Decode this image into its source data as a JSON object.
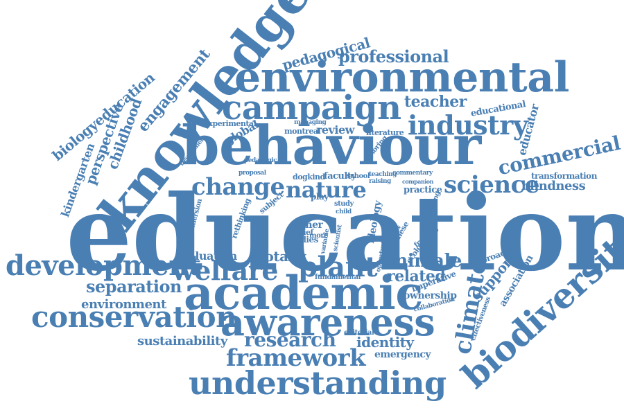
{
  "accent_color": "#4a7fb3",
  "words": [
    {
      "text": "education"
    },
    {
      "text": "behaviour"
    },
    {
      "text": "environmental"
    },
    {
      "text": "knowledge"
    },
    {
      "text": "academic"
    },
    {
      "text": "awareness"
    },
    {
      "text": "campaign"
    },
    {
      "text": "biodiversity"
    },
    {
      "text": "development"
    },
    {
      "text": "conservation"
    },
    {
      "text": "understanding"
    },
    {
      "text": "welfare"
    },
    {
      "text": "plant"
    },
    {
      "text": "industry"
    },
    {
      "text": "nature"
    },
    {
      "text": "change"
    },
    {
      "text": "science"
    },
    {
      "text": "framework"
    },
    {
      "text": "research"
    },
    {
      "text": "commercial"
    },
    {
      "text": "climate"
    },
    {
      "text": "professional"
    },
    {
      "text": "teacher"
    },
    {
      "text": "pedagogical"
    },
    {
      "text": "engagement"
    },
    {
      "text": "biologyeducation"
    },
    {
      "text": "perspective"
    },
    {
      "text": "childhood"
    },
    {
      "text": "kindergarten"
    },
    {
      "text": "separation"
    },
    {
      "text": "environment"
    },
    {
      "text": "sustainability"
    },
    {
      "text": "animale"
    },
    {
      "text": "related"
    },
    {
      "text": "support"
    },
    {
      "text": "identity"
    },
    {
      "text": "emergency"
    },
    {
      "text": "botany"
    },
    {
      "text": "evaluation"
    },
    {
      "text": "ownership"
    },
    {
      "text": "association"
    },
    {
      "text": "blindness"
    },
    {
      "text": "transformation"
    },
    {
      "text": "educator"
    },
    {
      "text": "educational"
    },
    {
      "text": "global"
    },
    {
      "text": "review"
    },
    {
      "text": "experimental"
    },
    {
      "text": "montreal"
    },
    {
      "text": "literature"
    },
    {
      "text": "faculty"
    },
    {
      "text": "practice"
    },
    {
      "text": "ideology"
    },
    {
      "text": "owner"
    },
    {
      "text": "studies"
    },
    {
      "text": "belief"
    },
    {
      "text": "play"
    },
    {
      "text": "immersion"
    },
    {
      "text": "rethinking"
    },
    {
      "text": "researcher"
    },
    {
      "text": "imperative"
    },
    {
      "text": "approaches"
    },
    {
      "text": "effectiveness"
    },
    {
      "text": "collaboration"
    },
    {
      "text": "fundamental"
    },
    {
      "text": "editorial"
    },
    {
      "text": "responding"
    },
    {
      "text": "ecological"
    },
    {
      "text": "chinese"
    },
    {
      "text": "exploring"
    },
    {
      "text": "managing"
    },
    {
      "text": "dogkind"
    },
    {
      "text": "school"
    },
    {
      "text": "teaching"
    },
    {
      "text": "commentary"
    },
    {
      "text": "pedagogic"
    },
    {
      "text": "proposal"
    },
    {
      "text": "subject"
    },
    {
      "text": "study"
    },
    {
      "text": "more"
    },
    {
      "text": "child"
    },
    {
      "text": "scientist"
    },
    {
      "text": "variable"
    },
    {
      "text": "opportunities"
    },
    {
      "text": "raising"
    },
    {
      "text": "companion"
    },
    {
      "text": "analysis"
    },
    {
      "text": "framing"
    }
  ]
}
